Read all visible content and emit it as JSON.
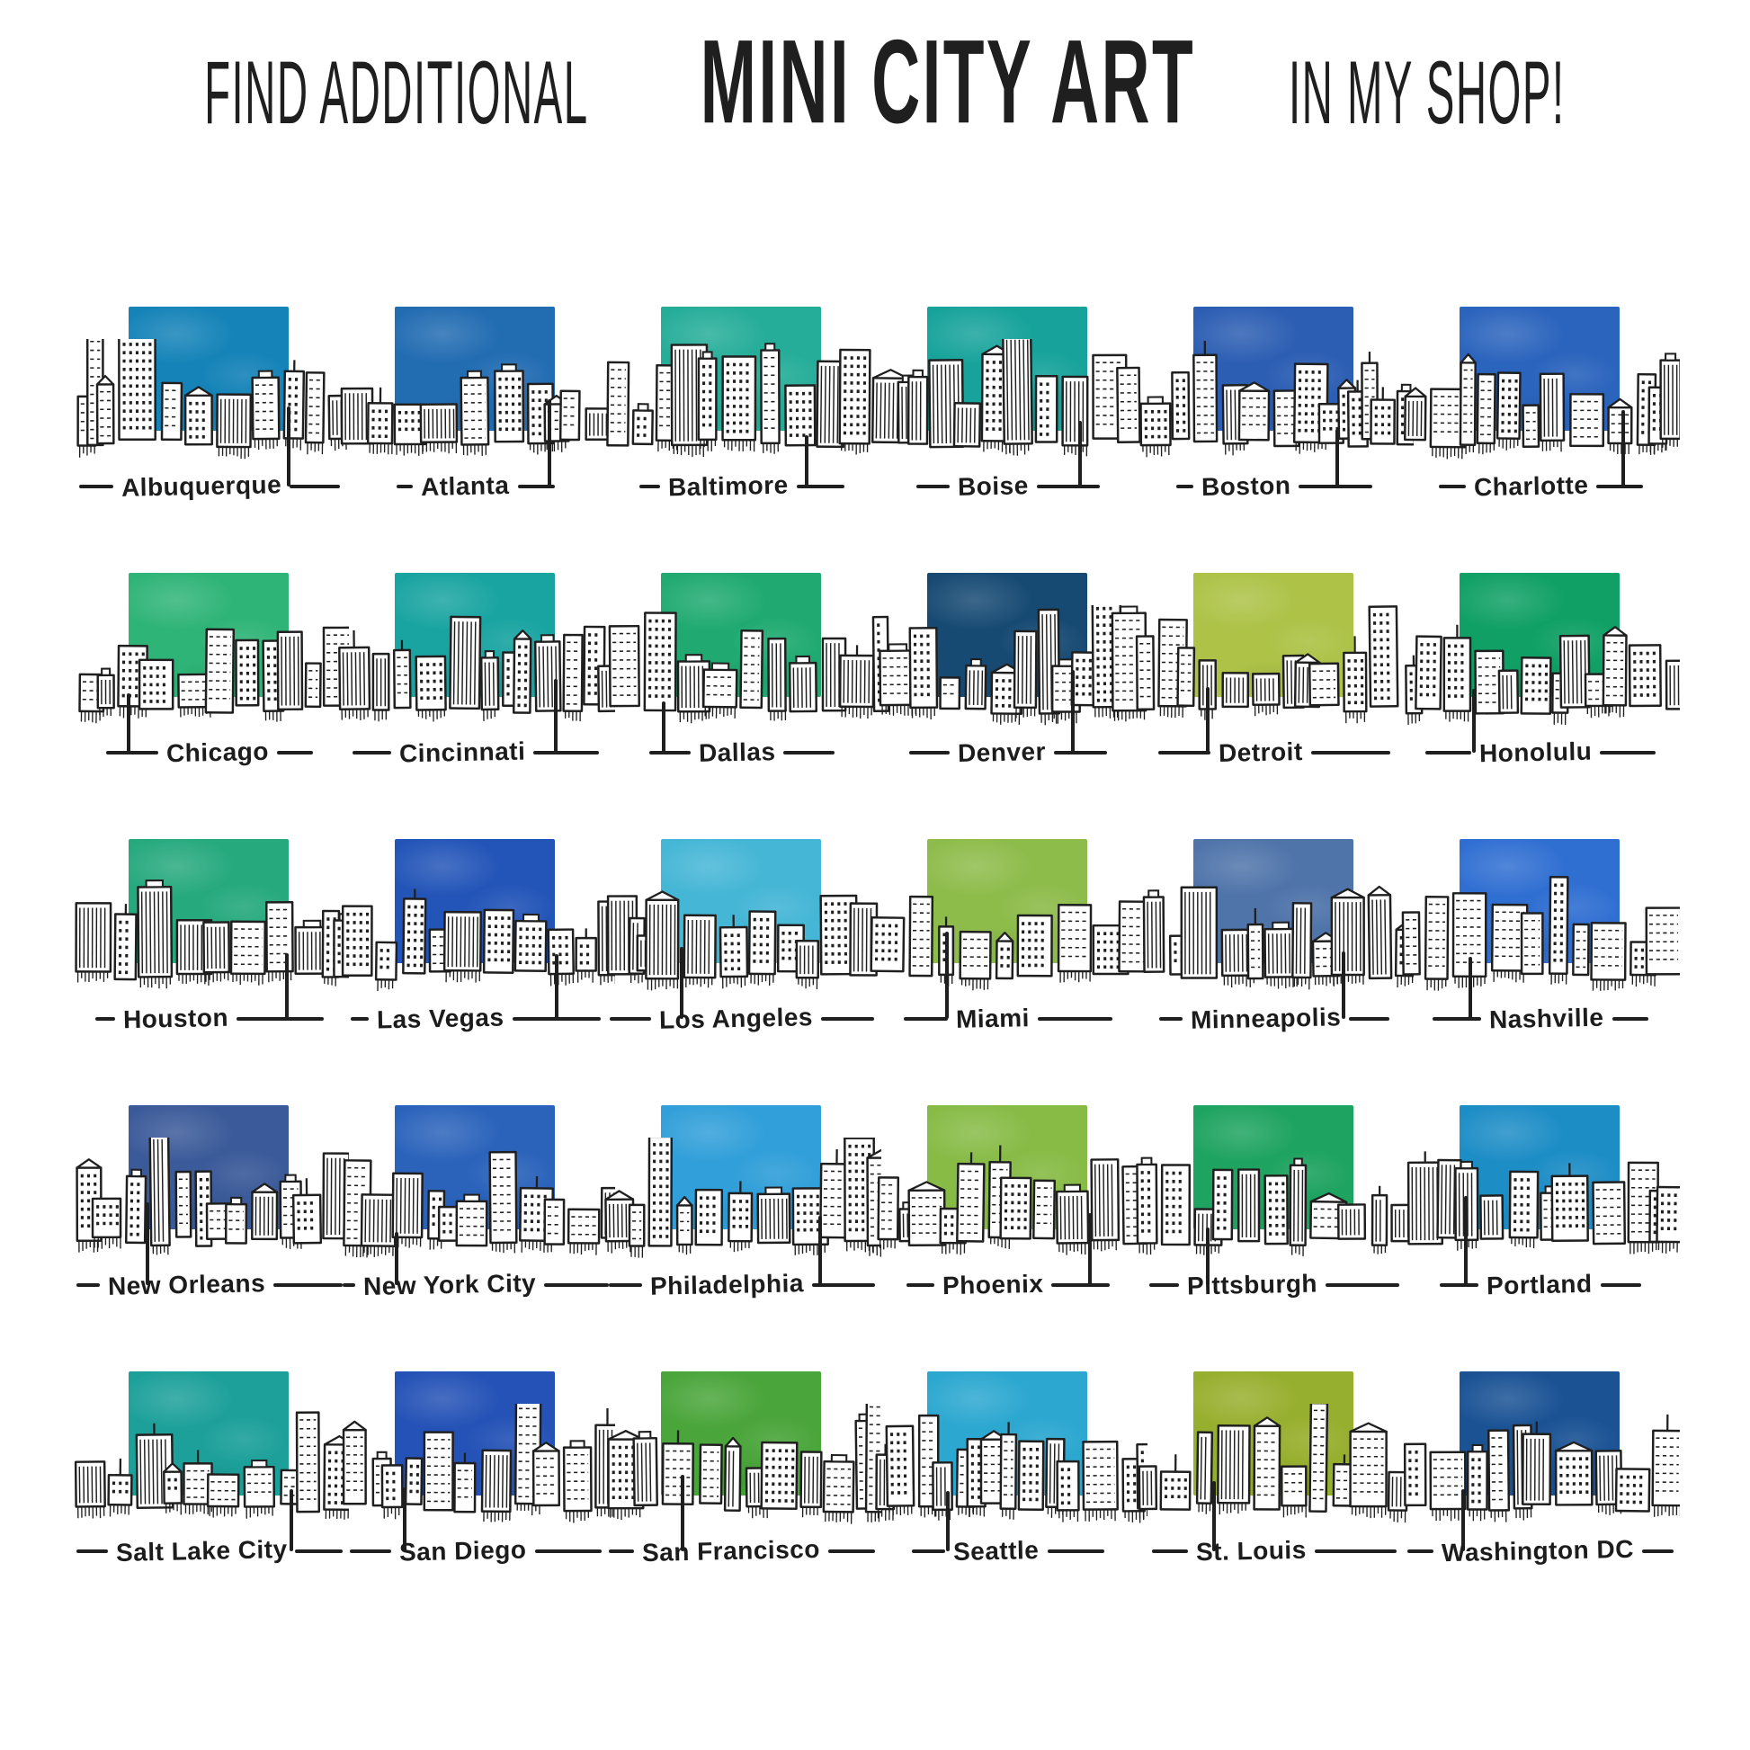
{
  "header": {
    "prefix": "FIND ADDITIONAL",
    "highlight": "MINI CITY ART",
    "suffix": "IN MY SHOP!"
  },
  "ink_color": "#1f1f1f",
  "background_color": "#ffffff",
  "grid": {
    "columns": 6,
    "rows": 5,
    "tile_count": 30
  },
  "cities": [
    {
      "name": "Albuquerque",
      "sky_color": "#1583b8"
    },
    {
      "name": "Atlanta",
      "sky_color": "#226cb2"
    },
    {
      "name": "Baltimore",
      "sky_color": "#25ad99"
    },
    {
      "name": "Boise",
      "sky_color": "#17a39b"
    },
    {
      "name": "Boston",
      "sky_color": "#2c5eb3"
    },
    {
      "name": "Charlotte",
      "sky_color": "#2b64bd"
    },
    {
      "name": "Chicago",
      "sky_color": "#2fb477"
    },
    {
      "name": "Cincinnati",
      "sky_color": "#19a4a1"
    },
    {
      "name": "Dallas",
      "sky_color": "#20aa71"
    },
    {
      "name": "Denver",
      "sky_color": "#174a73"
    },
    {
      "name": "Detroit",
      "sky_color": "#adc247"
    },
    {
      "name": "Honolulu",
      "sky_color": "#10a065"
    },
    {
      "name": "Houston",
      "sky_color": "#27a97e"
    },
    {
      "name": "Las Vegas",
      "sky_color": "#2355b8"
    },
    {
      "name": "Los Angeles",
      "sky_color": "#45b6d6"
    },
    {
      "name": "Miami",
      "sky_color": "#8ebc4b"
    },
    {
      "name": "Minneapolis",
      "sky_color": "#4f74aa"
    },
    {
      "name": "Nashville",
      "sky_color": "#306fd2"
    },
    {
      "name": "New Orleans",
      "sky_color": "#3b5a99"
    },
    {
      "name": "New York City",
      "sky_color": "#2b63bb"
    },
    {
      "name": "Philadelphia",
      "sky_color": "#319fd9"
    },
    {
      "name": "Phoenix",
      "sky_color": "#87bb46"
    },
    {
      "name": "Pittsburgh",
      "sky_color": "#1ea360"
    },
    {
      "name": "Portland",
      "sky_color": "#1d8dc6"
    },
    {
      "name": "Salt Lake City",
      "sky_color": "#1da09a"
    },
    {
      "name": "San Diego",
      "sky_color": "#2452b6"
    },
    {
      "name": "San Francisco",
      "sky_color": "#4aa53a"
    },
    {
      "name": "Seattle",
      "sky_color": "#2ba7d0"
    },
    {
      "name": "St. Louis",
      "sky_color": "#97af2e"
    },
    {
      "name": "Washington DC",
      "sky_color": "#1a5294"
    }
  ]
}
